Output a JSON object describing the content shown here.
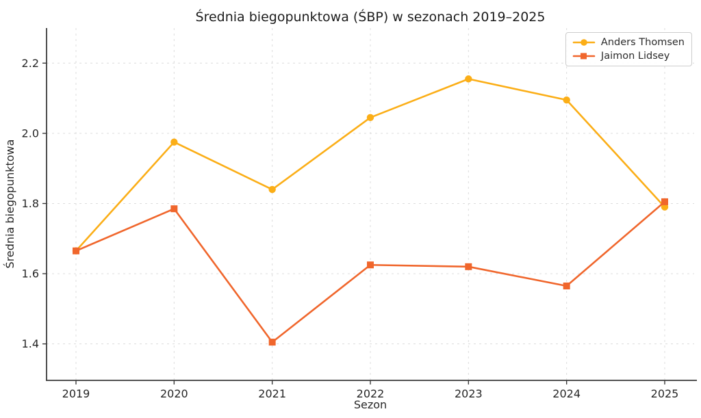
{
  "chart_data": {
    "type": "line",
    "title": "Średnia biegopunktowa (ŚBP) w sezonach 2019–2025",
    "xlabel": "Sezon",
    "ylabel": "Średnia biegopunktowa",
    "x": [
      2019,
      2020,
      2021,
      2022,
      2023,
      2024,
      2025
    ],
    "xtick_labels": [
      "2019",
      "2020",
      "2021",
      "2022",
      "2023",
      "2024",
      "2025"
    ],
    "yticks": [
      1.4,
      1.6,
      1.8,
      2.0,
      2.2
    ],
    "ytick_labels": [
      "1.4",
      "1.6",
      "1.8",
      "2.0",
      "2.2"
    ],
    "xlim": [
      2018.7,
      2025.3
    ],
    "ylim": [
      1.296,
      2.3
    ],
    "grid": {
      "visible": true,
      "style": "dashed",
      "color": "#dcdcdc"
    },
    "legend": {
      "position": "upper right"
    },
    "axis_color": "#3a3a3a",
    "series": [
      {
        "name": "Anders Thomsen",
        "color": "#FBAE17",
        "marker": "circle",
        "values": [
          1.665,
          1.975,
          1.84,
          2.045,
          2.155,
          2.095,
          1.79
        ]
      },
      {
        "name": "Jaimon Lidsey",
        "color": "#F0662C",
        "marker": "square",
        "values": [
          1.665,
          1.785,
          1.405,
          1.625,
          1.62,
          1.565,
          1.805
        ]
      }
    ]
  }
}
